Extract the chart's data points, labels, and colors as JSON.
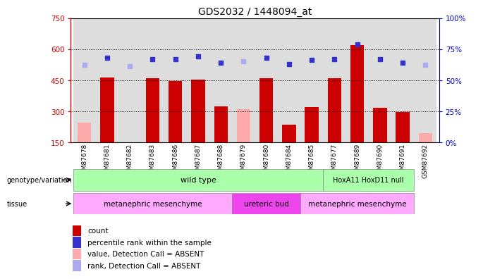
{
  "title": "GDS2032 / 1448094_at",
  "samples": [
    "GSM87678",
    "GSM87681",
    "GSM87682",
    "GSM87683",
    "GSM87686",
    "GSM87687",
    "GSM87688",
    "GSM87679",
    "GSM87680",
    "GSM87684",
    "GSM87685",
    "GSM87677",
    "GSM87689",
    "GSM87690",
    "GSM87691",
    "GSM87692"
  ],
  "count_values": [
    245,
    463,
    150,
    460,
    447,
    452,
    323,
    310,
    460,
    235,
    318,
    460,
    620,
    315,
    295,
    195
  ],
  "rank_values": [
    62,
    68,
    61,
    67,
    67,
    69,
    64,
    65,
    68,
    63,
    66,
    67,
    79,
    67,
    64,
    62
  ],
  "absent": [
    true,
    false,
    true,
    false,
    false,
    false,
    false,
    true,
    false,
    false,
    false,
    false,
    false,
    false,
    false,
    true
  ],
  "ylim_left": [
    150,
    750
  ],
  "ylim_right": [
    0,
    100
  ],
  "yticks_left": [
    150,
    300,
    450,
    600,
    750
  ],
  "yticks_right": [
    0,
    25,
    50,
    75,
    100
  ],
  "bar_color_present": "#cc0000",
  "bar_color_absent": "#ffaaaa",
  "dot_color_present": "#3333cc",
  "dot_color_absent": "#aaaaee",
  "legend_items": [
    {
      "label": "count",
      "color": "#cc0000"
    },
    {
      "label": "percentile rank within the sample",
      "color": "#3333cc"
    },
    {
      "label": "value, Detection Call = ABSENT",
      "color": "#ffaaaa"
    },
    {
      "label": "rank, Detection Call = ABSENT",
      "color": "#aaaaee"
    }
  ]
}
